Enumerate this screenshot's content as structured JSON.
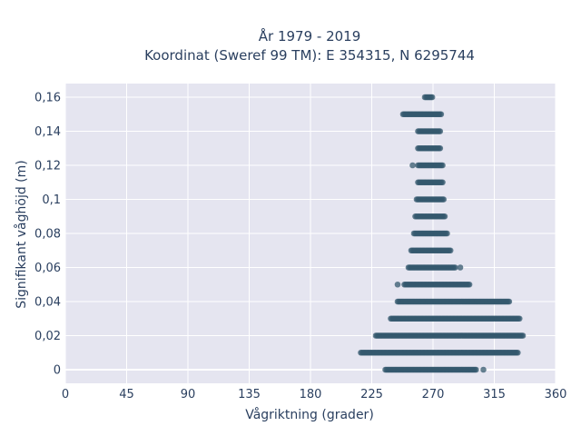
{
  "chart_data": {
    "type": "scatter",
    "title_line1": "År 1979 - 2019",
    "title_line2": "Koordinat (Sweref 99 TM): E 354315, N 6295744",
    "xlabel": "Vågriktning (grader)",
    "ylabel": "Signifikant våghöjd (m)",
    "xlim": [
      0,
      360
    ],
    "ylim": [
      -0.008,
      0.168
    ],
    "x_ticks": [
      0,
      45,
      90,
      135,
      180,
      225,
      270,
      315,
      360
    ],
    "x_tick_labels": [
      "0",
      "45",
      "90",
      "135",
      "180",
      "225",
      "270",
      "315",
      "360"
    ],
    "y_ticks": [
      0,
      0.02,
      0.04,
      0.06,
      0.08,
      0.1,
      0.12,
      0.14,
      0.16
    ],
    "y_tick_labels": [
      "0",
      "0,02",
      "0,04",
      "0,06",
      "0,08",
      "0,1",
      "0,12",
      "0,14",
      "0,16"
    ],
    "grid": true,
    "marker_color": "#34586e",
    "plot_bg": "#e5e5f0",
    "bands": [
      {
        "y": 0.0,
        "x_min": 235,
        "x_max": 302,
        "outliers": [
          307
        ]
      },
      {
        "y": 0.01,
        "x_min": 217,
        "x_max": 333,
        "outliers": []
      },
      {
        "y": 0.02,
        "x_min": 228,
        "x_max": 336,
        "outliers": []
      },
      {
        "y": 0.03,
        "x_min": 239,
        "x_max": 334,
        "outliers": []
      },
      {
        "y": 0.04,
        "x_min": 244,
        "x_max": 326,
        "outliers": []
      },
      {
        "y": 0.05,
        "x_min": 249,
        "x_max": 297,
        "outliers": [
          244
        ]
      },
      {
        "y": 0.06,
        "x_min": 252,
        "x_max": 287,
        "outliers": [
          290
        ]
      },
      {
        "y": 0.07,
        "x_min": 254,
        "x_max": 283,
        "outliers": []
      },
      {
        "y": 0.08,
        "x_min": 256,
        "x_max": 281,
        "outliers": []
      },
      {
        "y": 0.09,
        "x_min": 257,
        "x_max": 279,
        "outliers": []
      },
      {
        "y": 0.1,
        "x_min": 258,
        "x_max": 278,
        "outliers": []
      },
      {
        "y": 0.11,
        "x_min": 259,
        "x_max": 277,
        "outliers": []
      },
      {
        "y": 0.12,
        "x_min": 259,
        "x_max": 277,
        "outliers": [
          255
        ]
      },
      {
        "y": 0.13,
        "x_min": 259,
        "x_max": 276,
        "outliers": []
      },
      {
        "y": 0.14,
        "x_min": 259,
        "x_max": 276,
        "outliers": []
      },
      {
        "y": 0.15,
        "x_min": 248,
        "x_max": 276,
        "outliers": []
      },
      {
        "y": 0.16,
        "x_min": 264,
        "x_max": 270,
        "outliers": []
      }
    ]
  }
}
